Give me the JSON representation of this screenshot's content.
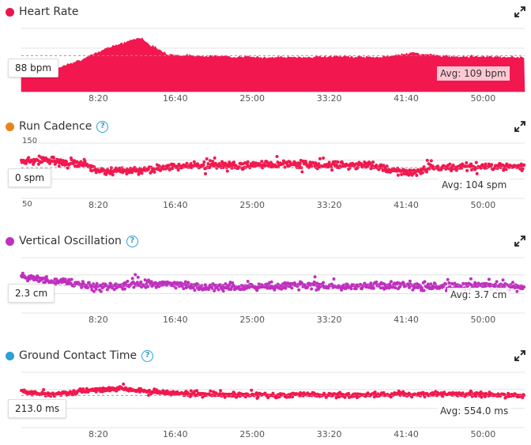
{
  "panels": [
    {
      "title": "Heart Rate",
      "dot_color": "#e8174a",
      "has_help": false,
      "value_label": "88 bpm",
      "avg_label": "Avg: 109 bpm",
      "y_labels": []
    },
    {
      "title": "Run Cadence",
      "dot_color": "#e8841a",
      "has_help": true,
      "value_label": "0 spm",
      "avg_label": "Avg: 104 spm",
      "y_labels": [
        "150",
        "50"
      ]
    },
    {
      "title": "Vertical Oscillation",
      "dot_color": "#c02fc0",
      "has_help": true,
      "value_label": "2.3 cm",
      "avg_label": "Avg: 3.7 cm",
      "y_labels": []
    },
    {
      "title": "Ground Contact Time",
      "dot_color": "#2a9fd8",
      "has_help": true,
      "value_label": "213.0 ms",
      "avg_label": "Avg: 554.0 ms",
      "y_labels": []
    }
  ],
  "chart_data": [
    {
      "type": "area",
      "title": "Heart Rate",
      "x_ticks": [
        "8:20",
        "16:40",
        "25:00",
        "33:20",
        "41:40",
        "50:00"
      ],
      "x_tick_seconds": [
        500,
        1000,
        1500,
        2000,
        2500,
        3000
      ],
      "x_range_seconds": [
        0,
        3270
      ],
      "x_minutes": [
        0,
        3,
        5,
        7,
        9,
        10,
        11,
        12,
        13,
        14,
        16,
        18,
        22,
        26,
        30,
        34,
        38,
        40,
        42,
        44,
        46,
        50,
        54
      ],
      "values": [
        95,
        90,
        100,
        106,
        116,
        120,
        122,
        126,
        128,
        120,
        110,
        109,
        108,
        107,
        107,
        108,
        107,
        108,
        112,
        110,
        108,
        108,
        107
      ],
      "avg": 109,
      "unit": "bpm",
      "color": "#f2184f"
    },
    {
      "type": "scatter",
      "title": "Run Cadence",
      "x_ticks": [
        "8:20",
        "16:40",
        "25:00",
        "33:20",
        "41:40",
        "50:00"
      ],
      "y_ticks": [
        50,
        150
      ],
      "ylim": [
        50,
        150
      ],
      "trend_minutes": [
        0,
        3,
        5,
        7,
        9,
        11,
        13,
        15,
        17,
        20,
        25,
        30,
        35,
        38,
        40,
        42,
        45,
        50,
        54
      ],
      "trend_values": [
        115,
        118,
        112,
        108,
        95,
        100,
        98,
        104,
        106,
        108,
        108,
        110,
        108,
        108,
        100,
        95,
        104,
        106,
        106
      ],
      "avg": 104,
      "unit": "spm",
      "color": "#f2184f"
    },
    {
      "type": "scatter",
      "title": "Vertical Oscillation",
      "x_ticks": [
        "8:20",
        "16:40",
        "25:00",
        "33:20",
        "41:40",
        "50:00"
      ],
      "trend_minutes": [
        0,
        3,
        5,
        8,
        11,
        14,
        17,
        20,
        25,
        30,
        35,
        40,
        45,
        50,
        54
      ],
      "trend_values": [
        4.2,
        4.0,
        3.9,
        3.6,
        3.7,
        3.8,
        3.7,
        3.6,
        3.6,
        3.7,
        3.6,
        3.7,
        3.6,
        3.7,
        3.6
      ],
      "avg": 3.7,
      "unit": "cm",
      "color": "#c02fc0"
    },
    {
      "type": "scatter",
      "title": "Ground Contact Time",
      "x_ticks": [
        "8:20",
        "16:40",
        "25:00",
        "33:20",
        "41:40",
        "50:00"
      ],
      "trend_minutes": [
        0,
        3,
        5,
        8,
        11,
        14,
        17,
        20,
        25,
        30,
        35,
        40,
        45,
        50,
        54
      ],
      "trend_values": [
        580,
        565,
        575,
        600,
        610,
        580,
        570,
        560,
        555,
        560,
        555,
        560,
        565,
        560,
        555
      ],
      "avg": 554.0,
      "unit": "ms",
      "color": "#f2184f"
    }
  ]
}
